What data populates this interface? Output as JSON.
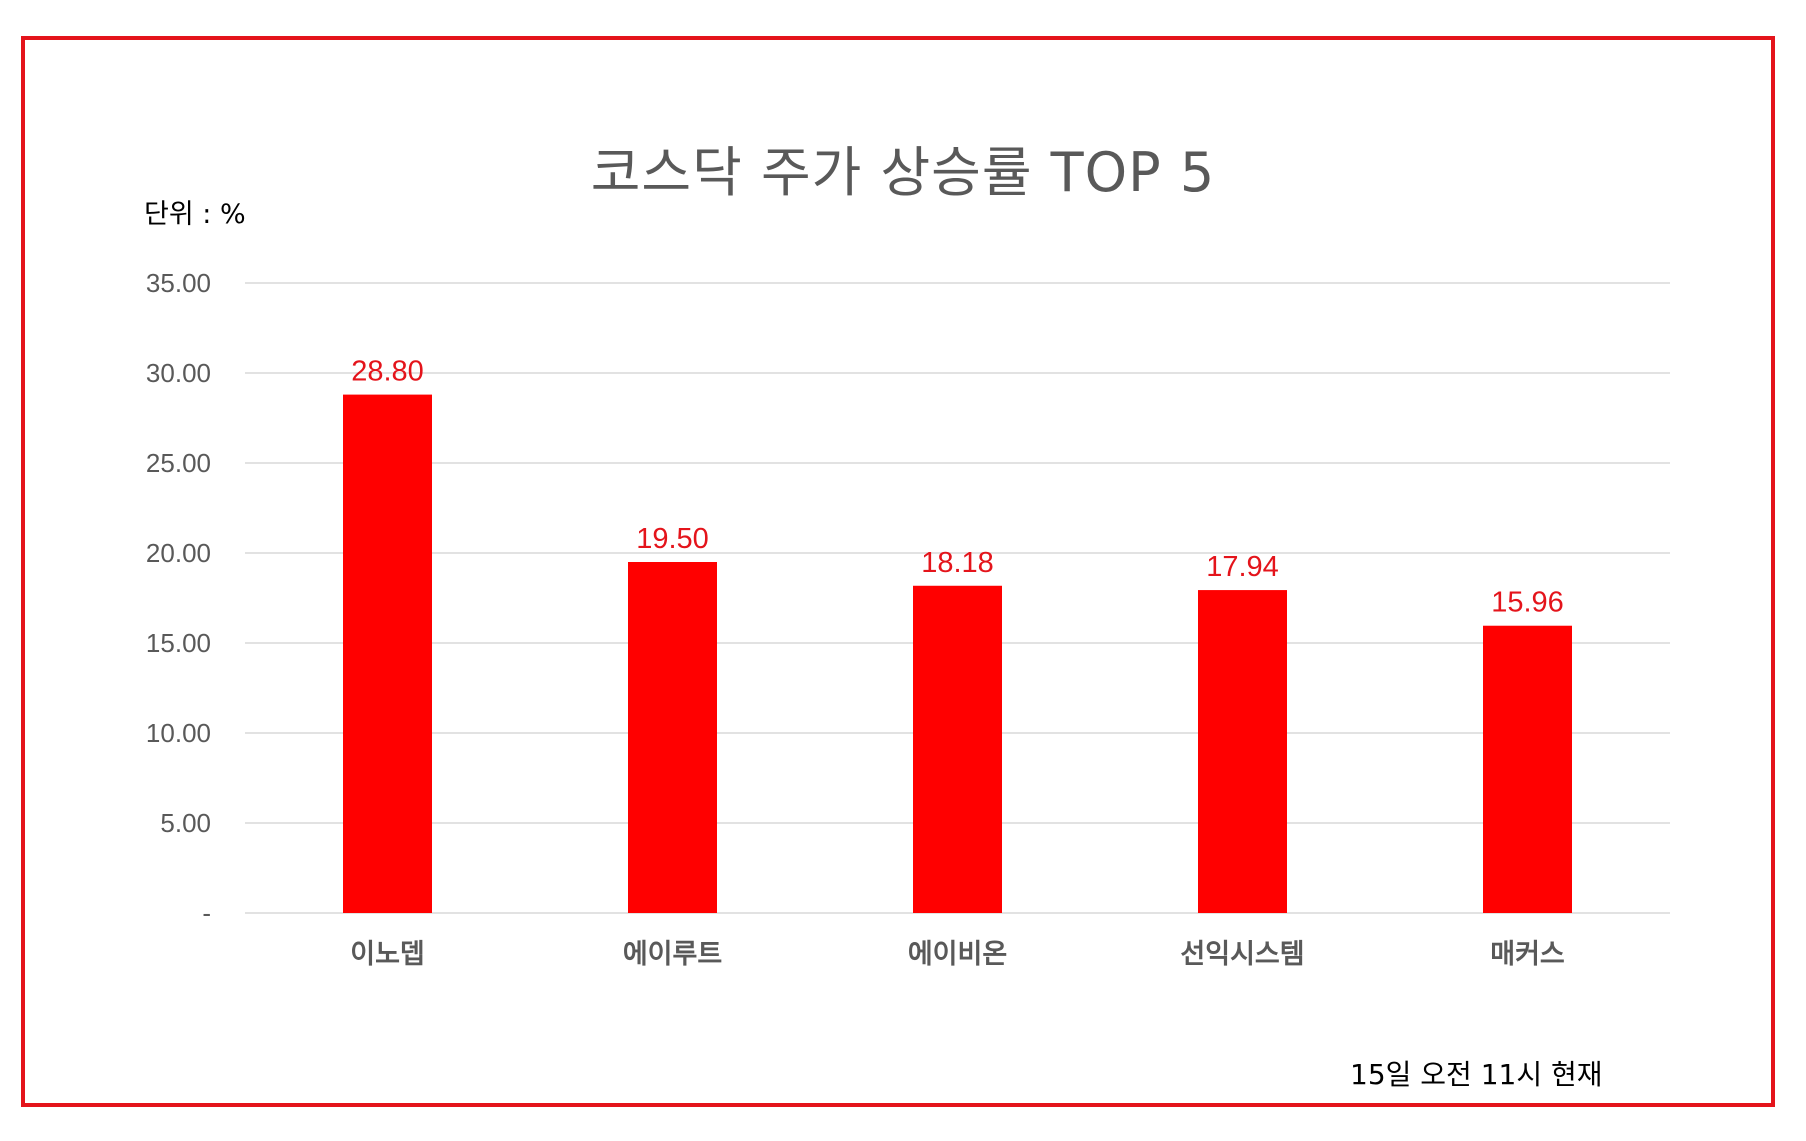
{
  "colors": {
    "bar": "#ff0000",
    "frame": "#e4141b",
    "data_label": "#e4141b",
    "gridline": "#d9d9d9",
    "text": "#595959"
  },
  "unit_label": "단위 : %",
  "footnote": "15일 오전 11시 현재",
  "chart_data": {
    "type": "bar",
    "title": "코스닥 주가 상승률 TOP 5",
    "categories": [
      "이노뎁",
      "에이루트",
      "에이비온",
      "선익시스템",
      "매커스"
    ],
    "values": [
      28.8,
      19.5,
      18.18,
      17.94,
      15.96
    ],
    "data_labels": [
      "28.80",
      "19.50",
      "18.18",
      "17.94",
      "15.96"
    ],
    "ylim": [
      0,
      35
    ],
    "yticks": [
      0,
      5,
      10,
      15,
      20,
      25,
      30,
      35
    ],
    "ytick_labels": [
      "-",
      "5.00",
      "10.00",
      "15.00",
      "20.00",
      "25.00",
      "30.00",
      "35.00"
    ],
    "xlabel": "",
    "ylabel": "",
    "grid": true,
    "legend": "none"
  }
}
